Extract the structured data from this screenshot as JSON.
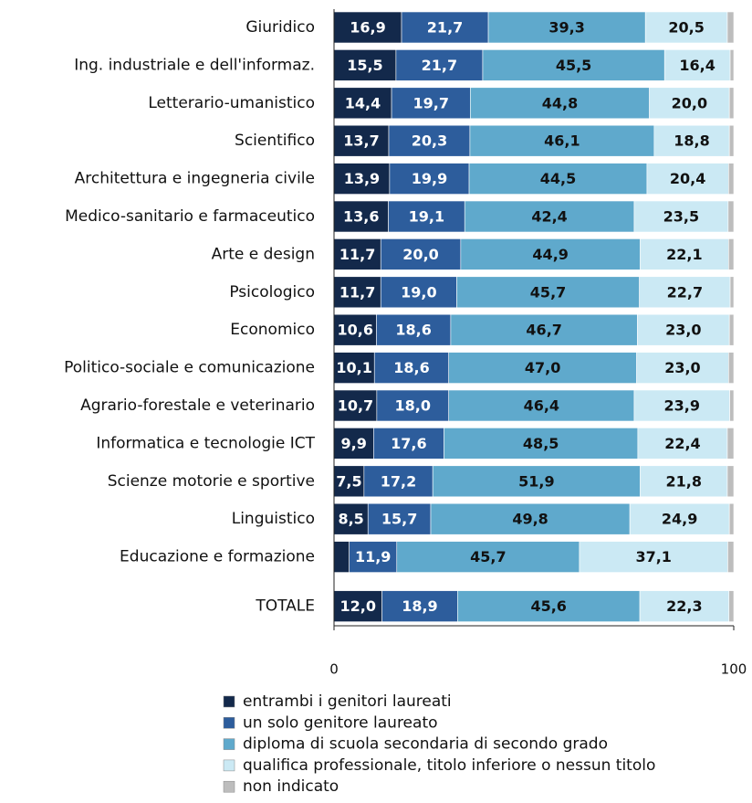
{
  "chart_data": {
    "type": "stacked-barh",
    "categories": [
      "Giuridico",
      "Ing. industriale e dell'informaz.",
      "Letterario-umanistico",
      "Scientifico",
      "Architettura e ingegneria civile",
      "Medico-sanitario e farmaceutico",
      "Arte e design",
      "Psicologico",
      "Economico",
      "Politico-sociale e comunicazione",
      "Agrario-forestale e veterinario",
      "Informatica e tecnologie ICT",
      "Scienze motorie e sportive",
      "Linguistico",
      "Educazione e formazione",
      "TOTALE"
    ],
    "series": [
      {
        "name": "entrambi i genitori laureati",
        "color": "#13294b",
        "text_color": "#ffffff",
        "values": [
          16.9,
          15.5,
          14.4,
          13.7,
          13.9,
          13.6,
          11.7,
          11.7,
          10.6,
          10.1,
          10.7,
          9.9,
          7.5,
          8.5,
          3.8,
          12.0
        ],
        "value_labels": [
          "16,9",
          "15,5",
          "14,4",
          "13,7",
          "13,9",
          "13,6",
          "11,7",
          "11,7",
          "10,6",
          "10,1",
          "10,7",
          "9,9",
          "7,5",
          "8,5",
          null,
          "12,0"
        ]
      },
      {
        "name": "un solo genitore laureato",
        "color": "#2d5d9c",
        "text_color": "#ffffff",
        "values": [
          21.7,
          21.7,
          19.7,
          20.3,
          19.9,
          19.1,
          20.0,
          19.0,
          18.6,
          18.6,
          18.0,
          17.6,
          17.2,
          15.7,
          11.9,
          18.9
        ],
        "value_labels": [
          "21,7",
          "21,7",
          "19,7",
          "20,3",
          "19,9",
          "19,1",
          "20,0",
          "19,0",
          "18,6",
          "18,6",
          "18,0",
          "17,6",
          "17,2",
          "15,7",
          "11,9",
          "18,9"
        ]
      },
      {
        "name": "diploma di scuola secondaria di secondo grado",
        "color": "#5fa9cc",
        "text_color": "#111111",
        "values": [
          39.3,
          45.5,
          44.8,
          46.1,
          44.5,
          42.4,
          44.9,
          45.7,
          46.7,
          47.0,
          46.4,
          48.5,
          51.9,
          49.8,
          45.7,
          45.6
        ],
        "value_labels": [
          "39,3",
          "45,5",
          "44,8",
          "46,1",
          "44,5",
          "42,4",
          "44,9",
          "45,7",
          "46,7",
          "47,0",
          "46,4",
          "48,5",
          "51,9",
          "49,8",
          "45,7",
          "45,6"
        ]
      },
      {
        "name": "qualifica professionale, titolo inferiore o nessun titolo",
        "color": "#cbe9f4",
        "text_color": "#111111",
        "values": [
          20.5,
          16.4,
          20.0,
          18.8,
          20.4,
          23.5,
          22.1,
          22.7,
          23.0,
          23.0,
          23.9,
          22.4,
          21.8,
          24.9,
          37.1,
          22.3
        ],
        "value_labels": [
          "20,5",
          "16,4",
          "20,0",
          "18,8",
          "20,4",
          "23,5",
          "22,1",
          "22,7",
          "23,0",
          "23,0",
          "23,9",
          "22,4",
          "21,8",
          "24,9",
          "37,1",
          "22,3"
        ]
      },
      {
        "name": "non indicato",
        "color": "#bdbdbd",
        "values": [
          1.6,
          0.9,
          1.1,
          1.1,
          1.3,
          1.4,
          1.3,
          0.9,
          1.1,
          1.3,
          1.0,
          1.6,
          1.6,
          1.1,
          1.5,
          1.2
        ]
      }
    ],
    "xlim": [
      0,
      100
    ],
    "xticks": [
      0,
      100
    ]
  }
}
